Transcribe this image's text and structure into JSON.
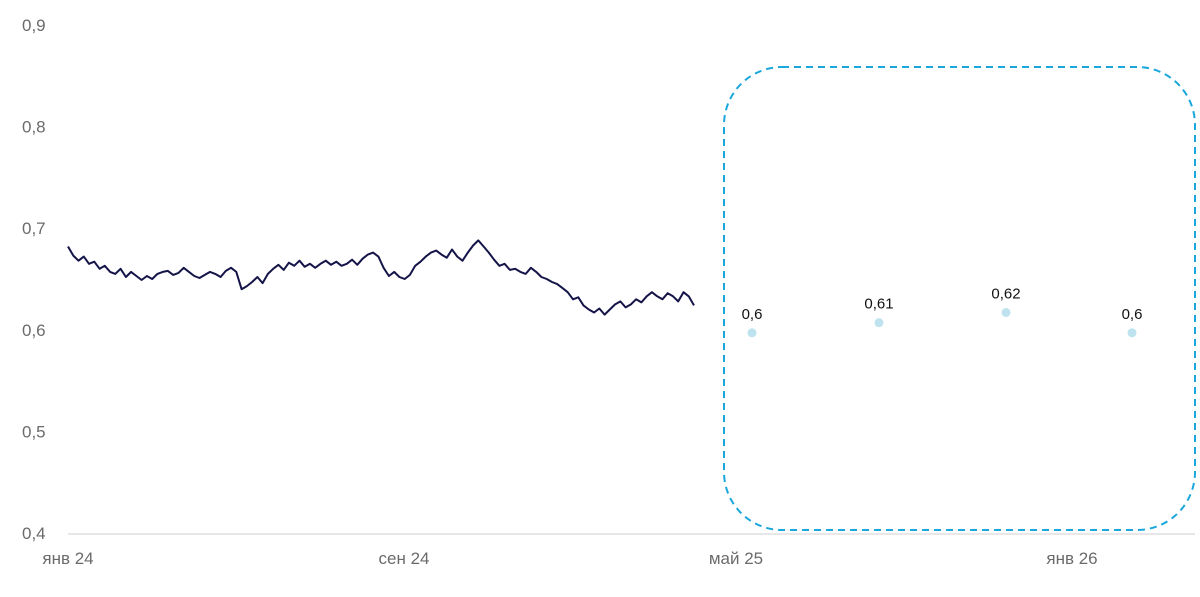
{
  "chart_data": {
    "type": "line",
    "title": "",
    "xlabel": "",
    "ylabel": "",
    "ylim": [
      0.4,
      0.9
    ],
    "y_ticks": [
      "0,4",
      "0,5",
      "0,6",
      "0,7",
      "0,8",
      "0,9"
    ],
    "x_ticks": [
      "янв 24",
      "сен 24",
      "май 25",
      "янв 26"
    ],
    "grid": false,
    "legend": "none",
    "colors": {
      "line": "#141448",
      "points": "#bfe3ee",
      "highlight_box": "#1aa7dc",
      "axis": "#cfcfcf"
    },
    "series": [
      {
        "values": [
          0.682,
          0.673,
          0.668,
          0.672,
          0.665,
          0.667,
          0.66,
          0.663,
          0.657,
          0.655,
          0.66,
          0.652,
          0.657,
          0.653,
          0.649,
          0.653,
          0.65,
          0.655,
          0.657,
          0.658,
          0.654,
          0.656,
          0.661,
          0.657,
          0.653,
          0.651,
          0.654,
          0.657,
          0.655,
          0.652,
          0.658,
          0.661,
          0.657,
          0.64,
          0.643,
          0.647,
          0.652,
          0.646,
          0.655,
          0.66,
          0.664,
          0.659,
          0.666,
          0.663,
          0.668,
          0.662,
          0.665,
          0.661,
          0.665,
          0.668,
          0.664,
          0.667,
          0.663,
          0.665,
          0.669,
          0.664,
          0.67,
          0.674,
          0.676,
          0.672,
          0.661,
          0.653,
          0.657,
          0.652,
          0.65,
          0.654,
          0.663,
          0.667,
          0.672,
          0.676,
          0.678,
          0.674,
          0.671,
          0.679,
          0.672,
          0.668,
          0.676,
          0.683,
          0.688,
          0.682,
          0.676,
          0.669,
          0.663,
          0.665,
          0.659,
          0.66,
          0.657,
          0.655,
          0.661,
          0.657,
          0.652,
          0.65,
          0.647,
          0.645,
          0.641,
          0.637,
          0.63,
          0.632,
          0.624,
          0.62,
          0.617,
          0.621,
          0.615,
          0.62,
          0.625,
          0.628,
          0.622,
          0.625,
          0.63,
          0.627,
          0.633,
          0.637,
          0.633,
          0.63,
          0.636,
          0.633,
          0.628,
          0.637,
          0.633,
          0.624
        ]
      },
      {
        "type": "scatter",
        "values": [
          0.6,
          0.61,
          0.62,
          0.6
        ],
        "labels": [
          "0,6",
          "0,61",
          "0,62",
          "0,6"
        ]
      }
    ],
    "annotations": [
      {
        "type": "dashed-rounded-box",
        "note": "forecast region"
      }
    ]
  }
}
